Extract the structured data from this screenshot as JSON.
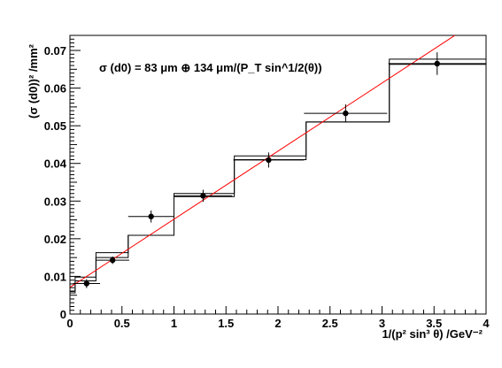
{
  "chart_data": {
    "type": "scatter",
    "annotation": "σ (d0) = 83 μm ⊕ 134 μm/(P_T sin^1/2(θ))",
    "xlabel": "1/(p² sin³ θ)   /GeV⁻²",
    "ylabel": "(σ (d0))²  /mm²",
    "xlim": [
      0,
      4
    ],
    "ylim": [
      0,
      0.074
    ],
    "x_ticks": [
      0,
      0.5,
      1,
      1.5,
      2,
      2.5,
      3,
      3.5,
      4
    ],
    "x_tick_labels": [
      "0",
      "0.5",
      "1",
      "1.5",
      "2",
      "2.5",
      "3",
      "3.5",
      "4"
    ],
    "y_ticks": [
      0,
      0.01,
      0.02,
      0.03,
      0.04,
      0.05,
      0.06,
      0.07
    ],
    "y_tick_labels": [
      "0",
      "0.01",
      "0.02",
      "0.03",
      "0.04",
      "0.05",
      "0.06",
      "0.07"
    ],
    "points": [
      {
        "x": 0.16,
        "y": 0.0081,
        "xerr": 0.13,
        "yerr": 0.0012
      },
      {
        "x": 0.41,
        "y": 0.0143,
        "xerr": 0.16,
        "yerr": 0.001
      },
      {
        "x": 0.78,
        "y": 0.0259,
        "xerr": 0.22,
        "yerr": 0.0016
      },
      {
        "x": 1.28,
        "y": 0.0314,
        "xerr": 0.28,
        "yerr": 0.0016
      },
      {
        "x": 1.91,
        "y": 0.0409,
        "xerr": 0.34,
        "yerr": 0.002
      },
      {
        "x": 2.65,
        "y": 0.0533,
        "xerr": 0.4,
        "yerr": 0.0024
      },
      {
        "x": 3.53,
        "y": 0.0665,
        "xerr": 0.47,
        "yerr": 0.003
      }
    ],
    "histograms": [
      {
        "edges": [
          0,
          0.05,
          0.25,
          0.56,
          1.0,
          1.58,
          2.27,
          3.07,
          4.0
        ],
        "values": [
          0.0061,
          0.0098,
          0.0163,
          0.0209,
          0.032,
          0.042,
          0.051,
          0.0677
        ]
      },
      {
        "edges": [
          0,
          0.05,
          0.25,
          0.56,
          1.0,
          1.58,
          2.27,
          3.07,
          4.0
        ],
        "values": [
          0.0056,
          0.0088,
          0.015,
          0.0209,
          0.0312,
          0.041,
          0.051,
          0.0663
        ]
      }
    ],
    "fit_line": {
      "x0": 0,
      "y0": 0.0071,
      "x1": 3.7,
      "y1": 0.074,
      "color": "#ff0000"
    }
  }
}
